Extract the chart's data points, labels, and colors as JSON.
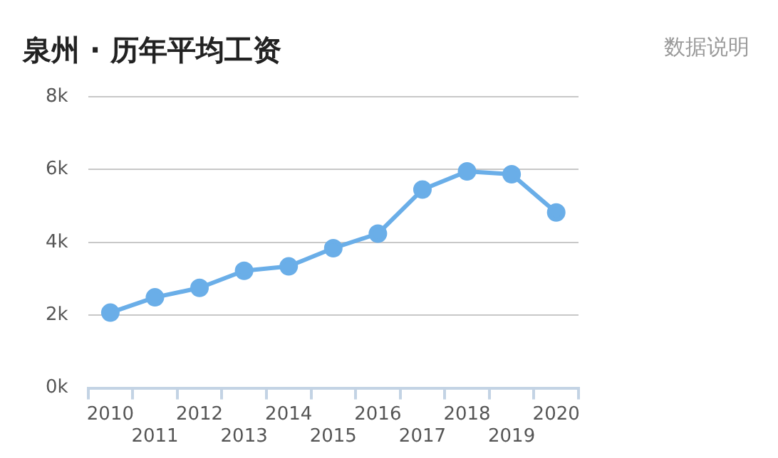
{
  "chart_data": {
    "type": "line",
    "title": "泉州 · 历年平均工资",
    "annotations": [
      "数据说明"
    ],
    "categories": [
      "2010",
      "2011",
      "2012",
      "2013",
      "2014",
      "2015",
      "2016",
      "2017",
      "2018",
      "2019",
      "2020"
    ],
    "series": [
      {
        "color": "#6aaee8",
        "values": [
          2.07,
          2.49,
          2.75,
          3.22,
          3.34,
          3.84,
          4.24,
          5.45,
          5.95,
          5.87,
          4.82
        ]
      }
    ],
    "ylim": [
      0,
      8
    ],
    "yticks": [
      {
        "value": 0,
        "label": "0k"
      },
      {
        "value": 2,
        "label": "2k"
      },
      {
        "value": 4,
        "label": "4k"
      },
      {
        "value": 6,
        "label": "6k"
      },
      {
        "value": 8,
        "label": "8k"
      }
    ],
    "grid": "y",
    "legend": false,
    "marker": "circle",
    "line_style": "solid"
  }
}
